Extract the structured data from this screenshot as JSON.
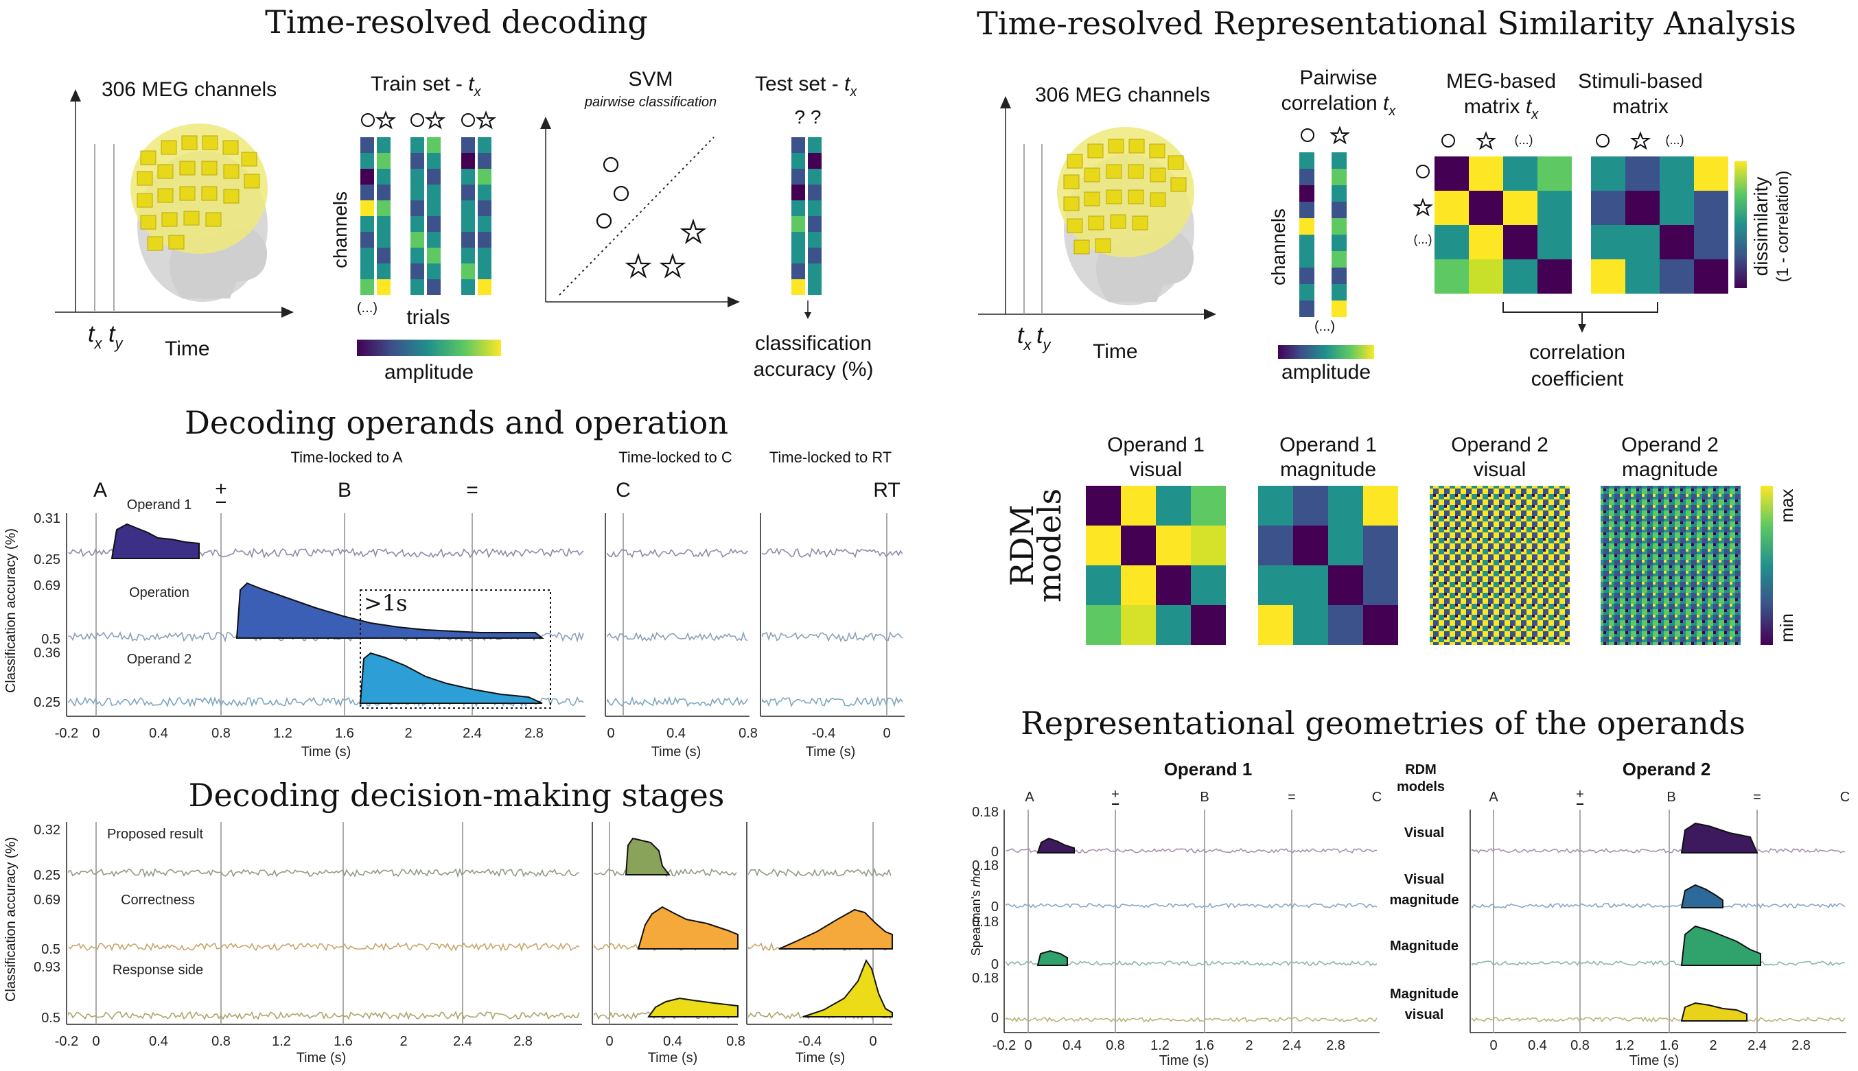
{
  "titles": {
    "decoding": "Time-resolved decoding",
    "rsa": "Time-resolved Representational Similarity Analysis",
    "operands_operation": "Decoding operands and operation",
    "decision": "Decoding decision-making stages",
    "geometries": "Representational geometries of the operands"
  },
  "decoding_schematic": {
    "meg_label": "306 MEG channels",
    "time_label": "Time",
    "tx": "t",
    "tx_sub": "x",
    "ty": "t",
    "ty_sub": "y",
    "train_label": "Train set - ",
    "channels_label": "channels",
    "trials_label": "trials",
    "ellipsis": "(...)",
    "amplitude_label": "amplitude",
    "svm_label": "SVM",
    "svm_sub": "pairwise classification",
    "test_label": "Test set - ",
    "question_marks": "? ?",
    "accuracy_line1": "classification",
    "accuracy_line2": "accuracy (%)"
  },
  "rsa_schematic": {
    "meg_label": "306 MEG channels",
    "time_label": "Time",
    "pairwise_line1": "Pairwise",
    "pairwise_line2": "correlation ",
    "channels_label": "channels",
    "ellipsis": "(...)",
    "amplitude_label": "amplitude",
    "meg_matrix_line1": "MEG-based",
    "meg_matrix_line2": "matrix ",
    "stim_matrix_line1": "Stimuli-based",
    "stim_matrix_line2": "matrix",
    "dissimilarity_line1": "dissimilarity",
    "dissimilarity_line2": "(1 - correlation)",
    "correlation_line1": "correlation",
    "correlation_line2": "coefficient"
  },
  "rdm_models": {
    "side_line1": "RDM",
    "side_line2": "models",
    "labels": [
      [
        "Operand 1",
        "visual"
      ],
      [
        "Operand 1",
        "magnitude"
      ],
      [
        "Operand 2",
        "visual"
      ],
      [
        "Operand 2",
        "magnitude"
      ]
    ],
    "scale_max": "max",
    "scale_min": "min"
  },
  "operands_panel": {
    "timelocked_a": "Time-locked to A",
    "timelocked_c": "Time-locked to C",
    "timelocked_rt": "Time-locked to RT",
    "events": [
      "A",
      "+",
      "B",
      "=",
      "C",
      "RT"
    ],
    "rows": [
      "Operand 1",
      "Operation",
      "Operand 2"
    ],
    "ylabel": "Classification accuracy (%)",
    "yticks": [
      [
        "0.31",
        "0.25"
      ],
      [
        "0.69",
        "0.5"
      ],
      [
        "0.36",
        "0.25"
      ]
    ],
    "annotation": ">1s",
    "xticks_main": [
      "-0.2",
      "0",
      "0.4",
      "0.8",
      "1.2",
      "1.6",
      "2",
      "2.4",
      "2.8"
    ],
    "xticks_c": [
      "0",
      "0.4",
      "0.8"
    ],
    "xticks_rt": [
      "-0.4",
      "0"
    ],
    "xlabel": "Time (s)"
  },
  "decision_panel": {
    "rows": [
      "Proposed result",
      "Correctness",
      "Response side"
    ],
    "ylabel": "Classification accuracy (%)",
    "yticks": [
      [
        "0.32",
        "0.25"
      ],
      [
        "0.69",
        "0.5"
      ],
      [
        "0.93",
        "0.5"
      ]
    ],
    "xticks_main": [
      "-0.2",
      "0",
      "0.4",
      "0.8",
      "1.2",
      "1.6",
      "2",
      "2.4",
      "2.8"
    ],
    "xticks_c": [
      "0",
      "0.4",
      "0.8"
    ],
    "xticks_rt": [
      "-0.4",
      "0"
    ],
    "xlabel": "Time (s)"
  },
  "geometries_panel": {
    "operand1_title": "Operand 1",
    "operand2_title": "Operand 2",
    "rdm_header_line1": "RDM",
    "rdm_header_line2": "models",
    "events": [
      "A",
      "+",
      "B",
      "=",
      "C"
    ],
    "rows": [
      [
        "Visual",
        ""
      ],
      [
        "Visual",
        "magnitude"
      ],
      [
        "Magnitude",
        ""
      ],
      [
        "Magnitude",
        "visual"
      ]
    ],
    "ylabel_main": "Spearman's ",
    "ylabel_italic": "rho",
    "yticks": [
      "0.18",
      "0"
    ],
    "xticks_left": [
      "-0.2",
      "0",
      "0.4",
      "0.8",
      "1.2",
      "1.6",
      "2",
      "2.4",
      "2.8"
    ],
    "xticks_right": [
      "0",
      "0.4",
      "0.8",
      "1.2",
      "1.6",
      "2",
      "2.4",
      "2.8"
    ],
    "xlabel": "Time (s)"
  },
  "colors": {
    "operand1": "#3b2f86",
    "operation": "#3b5fb5",
    "operand2": "#2e9fd6",
    "proposed": "#8aa35a",
    "correctness": "#f5a93a",
    "response": "#ecdc18",
    "visual": "#3d1a5e",
    "visual_magnitude": "#2d6a99",
    "magnitude": "#2fa36b",
    "magnitude_visual": "#e8d31a",
    "viridis": [
      "#440154",
      "#3b528b",
      "#21918c",
      "#5ec962",
      "#fde725"
    ]
  }
}
